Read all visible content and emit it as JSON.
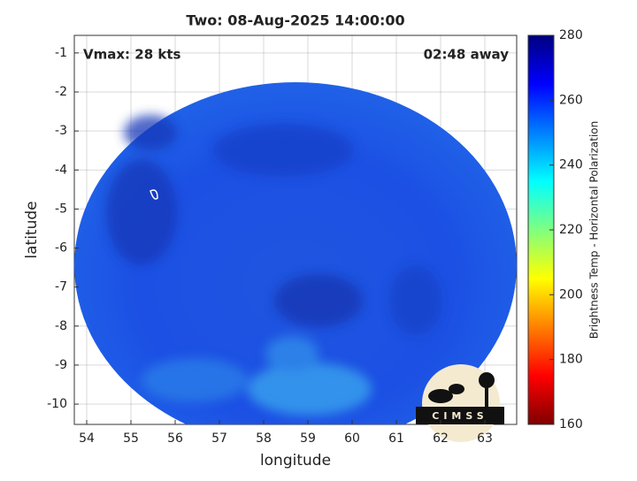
{
  "chart_data": {
    "type": "map",
    "title": "Two: 08-Aug-2025 14:00:00",
    "annotations": [
      "Vmax: 28 kts",
      "02:48 away"
    ],
    "xlabel": "longitude",
    "ylabel": "latitude",
    "xlim": [
      53.72,
      63.72
    ],
    "xticks": [
      54,
      55,
      56,
      57,
      58,
      59,
      60,
      61,
      62,
      63
    ],
    "ylim": [
      -10.52,
      -0.55
    ],
    "yticks": [
      -10,
      -9,
      -8,
      -7,
      -6,
      -5,
      -4,
      -3,
      -2,
      -1
    ],
    "grid": true,
    "colorbar": {
      "label": "Brightness Temp - Horizontal Polarization",
      "lim": [
        160,
        280
      ],
      "ticks": [
        160,
        180,
        200,
        220,
        240,
        260,
        280
      ]
    },
    "logo": "CIMSS"
  }
}
